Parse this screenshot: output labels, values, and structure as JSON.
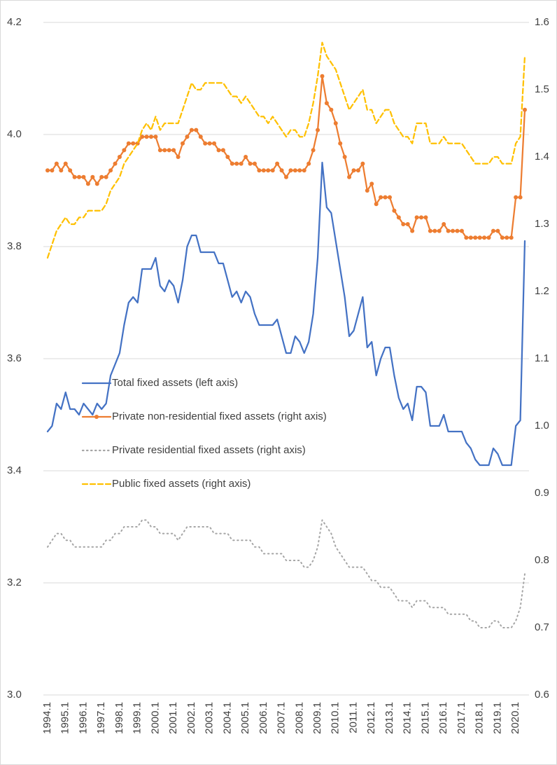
{
  "chart_data": {
    "type": "line",
    "categories": [
      "1994.1",
      null,
      null,
      null,
      "1995.1",
      null,
      null,
      null,
      "1996.1",
      null,
      null,
      null,
      "1997.1",
      null,
      null,
      null,
      "1998.1",
      null,
      null,
      null,
      "1999.1",
      null,
      null,
      null,
      "2000.1",
      null,
      null,
      null,
      "2001.1",
      null,
      null,
      null,
      "2002.1",
      null,
      null,
      null,
      "2003.1",
      null,
      null,
      null,
      "2004.1",
      null,
      null,
      null,
      "2005.1",
      null,
      null,
      null,
      "2006.1",
      null,
      null,
      null,
      "2007.1",
      null,
      null,
      null,
      "2008.1",
      null,
      null,
      null,
      "2009.1",
      null,
      null,
      null,
      "2010.1",
      null,
      null,
      null,
      "2011.1",
      null,
      null,
      null,
      "2012.1",
      null,
      null,
      null,
      "2013.1",
      null,
      null,
      null,
      "2014.1",
      null,
      null,
      null,
      "2015.1",
      null,
      null,
      null,
      "2016.1",
      null,
      null,
      null,
      "2017.1",
      null,
      null,
      null,
      "2018.1",
      null,
      null,
      null,
      "2019.1",
      null,
      null,
      null,
      "2020.1",
      null,
      null
    ],
    "ylim": [
      3.0,
      4.2
    ],
    "yticks": [
      {
        "value": 3.0,
        "label": "3.0"
      },
      3.2,
      3.4,
      3.6,
      3.8,
      {
        "value": 4.0,
        "label": "4.0"
      },
      4.2
    ],
    "y2lim": [
      0.6,
      1.6
    ],
    "y2ticks": [
      0.6,
      0.7,
      0.8,
      0.9,
      {
        "value": 1.0,
        "label": "1.0"
      },
      1.1,
      1.2,
      1.3,
      1.4,
      1.5,
      1.6
    ],
    "grid": true,
    "series": [
      {
        "name": "Total fixed assets (left axis)",
        "color": "#4472c4",
        "line_style": "solid",
        "markers": false,
        "values": [
          3.47,
          3.48,
          3.52,
          3.51,
          3.54,
          3.51,
          3.51,
          3.5,
          3.52,
          3.51,
          3.5,
          3.52,
          3.51,
          3.52,
          3.57,
          3.59,
          3.61,
          3.66,
          3.7,
          3.71,
          3.7,
          3.76,
          3.76,
          3.76,
          3.78,
          3.73,
          3.72,
          3.74,
          3.73,
          3.7,
          3.74,
          3.8,
          3.82,
          3.82,
          3.79,
          3.79,
          3.79,
          3.79,
          3.77,
          3.77,
          3.74,
          3.71,
          3.72,
          3.7,
          3.72,
          3.71,
          3.68,
          3.66,
          3.66,
          3.66,
          3.66,
          3.67,
          3.64,
          3.61,
          3.61,
          3.64,
          3.63,
          3.61,
          3.63,
          3.68,
          3.78,
          3.95,
          3.87,
          3.86,
          3.81,
          3.76,
          3.71,
          3.64,
          3.65,
          3.68,
          3.71,
          3.62,
          3.63,
          3.57,
          3.6,
          3.62,
          3.62,
          3.57,
          3.53,
          3.51,
          3.52,
          3.49,
          3.55,
          3.55,
          3.54,
          3.48,
          3.48,
          3.48,
          3.5,
          3.47,
          3.47,
          3.47,
          3.47,
          3.45,
          3.44,
          3.42,
          3.41,
          3.41,
          3.41,
          3.44,
          3.43,
          3.41,
          3.41,
          3.41,
          3.48,
          3.49,
          3.81
        ]
      },
      {
        "name": "Private non-residential fixed assets (right axis)",
        "color": "#ed7d31",
        "axis": "y2",
        "line_style": "solid",
        "markers": true,
        "values": [
          1.38,
          1.38,
          1.39,
          1.38,
          1.39,
          1.38,
          1.37,
          1.37,
          1.37,
          1.36,
          1.37,
          1.36,
          1.37,
          1.37,
          1.38,
          1.39,
          1.4,
          1.41,
          1.42,
          1.42,
          1.42,
          1.43,
          1.43,
          1.43,
          1.43,
          1.41,
          1.41,
          1.41,
          1.41,
          1.4,
          1.42,
          1.43,
          1.44,
          1.44,
          1.43,
          1.42,
          1.42,
          1.42,
          1.41,
          1.41,
          1.4,
          1.39,
          1.39,
          1.39,
          1.4,
          1.39,
          1.39,
          1.38,
          1.38,
          1.38,
          1.38,
          1.39,
          1.38,
          1.37,
          1.38,
          1.38,
          1.38,
          1.38,
          1.39,
          1.41,
          1.44,
          1.52,
          1.48,
          1.47,
          1.45,
          1.42,
          1.4,
          1.37,
          1.38,
          1.38,
          1.39,
          1.35,
          1.36,
          1.33,
          1.34,
          1.34,
          1.34,
          1.32,
          1.31,
          1.3,
          1.3,
          1.29,
          1.31,
          1.31,
          1.31,
          1.29,
          1.29,
          1.29,
          1.3,
          1.29,
          1.29,
          1.29,
          1.29,
          1.28,
          1.28,
          1.28,
          1.28,
          1.28,
          1.28,
          1.29,
          1.29,
          1.28,
          1.28,
          1.28,
          1.34,
          1.34,
          1.47
        ]
      },
      {
        "name": "Private residential fixed assets (right axis)",
        "color": "#a5a5a5",
        "axis": "y2",
        "line_style": "dotted",
        "markers": false,
        "values": [
          0.82,
          0.83,
          0.84,
          0.84,
          0.83,
          0.83,
          0.82,
          0.82,
          0.82,
          0.82,
          0.82,
          0.82,
          0.82,
          0.83,
          0.83,
          0.84,
          0.84,
          0.85,
          0.85,
          0.85,
          0.85,
          0.86,
          0.86,
          0.85,
          0.85,
          0.84,
          0.84,
          0.84,
          0.84,
          0.83,
          0.84,
          0.85,
          0.85,
          0.85,
          0.85,
          0.85,
          0.85,
          0.84,
          0.84,
          0.84,
          0.84,
          0.83,
          0.83,
          0.83,
          0.83,
          0.83,
          0.82,
          0.82,
          0.81,
          0.81,
          0.81,
          0.81,
          0.81,
          0.8,
          0.8,
          0.8,
          0.8,
          0.79,
          0.79,
          0.8,
          0.82,
          0.86,
          0.85,
          0.84,
          0.82,
          0.81,
          0.8,
          0.79,
          0.79,
          0.79,
          0.79,
          0.78,
          0.77,
          0.77,
          0.76,
          0.76,
          0.76,
          0.75,
          0.74,
          0.74,
          0.74,
          0.73,
          0.74,
          0.74,
          0.74,
          0.73,
          0.73,
          0.73,
          0.73,
          0.72,
          0.72,
          0.72,
          0.72,
          0.72,
          0.71,
          0.71,
          0.7,
          0.7,
          0.7,
          0.71,
          0.71,
          0.7,
          0.7,
          0.7,
          0.71,
          0.73,
          0.78
        ]
      },
      {
        "name": "Public fixed assets (right axis)",
        "color": "#ffc000",
        "axis": "y2",
        "line_style": "dashed",
        "markers": false,
        "values": [
          1.25,
          1.27,
          1.29,
          1.3,
          1.31,
          1.3,
          1.3,
          1.31,
          1.31,
          1.32,
          1.32,
          1.32,
          1.32,
          1.33,
          1.35,
          1.36,
          1.37,
          1.39,
          1.4,
          1.41,
          1.42,
          1.44,
          1.45,
          1.44,
          1.46,
          1.44,
          1.45,
          1.45,
          1.45,
          1.45,
          1.47,
          1.49,
          1.51,
          1.5,
          1.5,
          1.51,
          1.51,
          1.51,
          1.51,
          1.51,
          1.5,
          1.49,
          1.49,
          1.48,
          1.49,
          1.48,
          1.47,
          1.46,
          1.46,
          1.45,
          1.46,
          1.45,
          1.44,
          1.43,
          1.44,
          1.44,
          1.43,
          1.43,
          1.45,
          1.48,
          1.52,
          1.57,
          1.55,
          1.54,
          1.53,
          1.51,
          1.49,
          1.47,
          1.48,
          1.49,
          1.5,
          1.47,
          1.47,
          1.45,
          1.46,
          1.47,
          1.47,
          1.45,
          1.44,
          1.43,
          1.43,
          1.42,
          1.45,
          1.45,
          1.45,
          1.42,
          1.42,
          1.42,
          1.43,
          1.42,
          1.42,
          1.42,
          1.42,
          1.41,
          1.4,
          1.39,
          1.39,
          1.39,
          1.39,
          1.4,
          1.4,
          1.39,
          1.39,
          1.39,
          1.42,
          1.43,
          1.55
        ]
      }
    ]
  }
}
